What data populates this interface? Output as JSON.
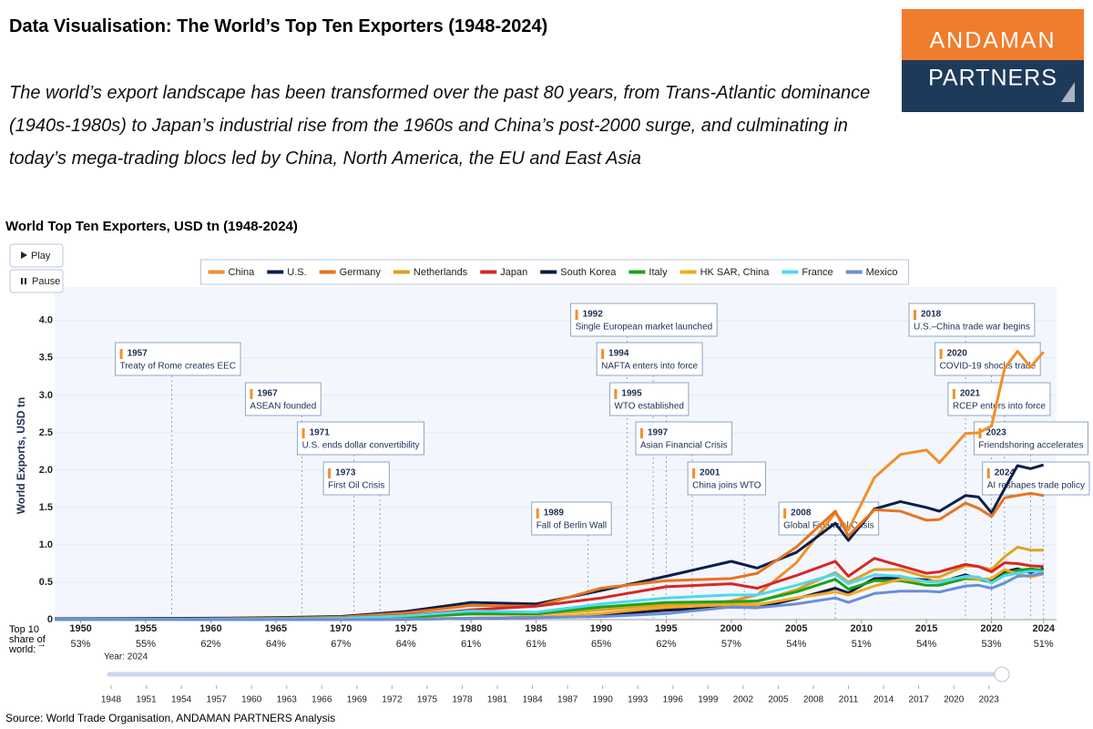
{
  "header": {
    "title": "Data Visualisation: The World’s Top Ten Exporters (1948-2024)",
    "subtitle": "The world’s export landscape has been transformed over the past 80 years, from Trans-Atlantic dominance (1940s-1980s) to Japan’s industrial rise from the 1960s and China’s post-2000 surge, and culminating in today’s mega-trading blocs led by China, North America, the EU and East Asia",
    "logo_top": "ANDAMAN",
    "logo_bottom": "PARTNERS"
  },
  "controls": {
    "play": "Play",
    "pause": "Pause",
    "slider_label": "Year: 2024",
    "slider_ticks": [
      1948,
      1951,
      1954,
      1957,
      1960,
      1963,
      1966,
      1969,
      1972,
      1975,
      1978,
      1981,
      1984,
      1987,
      1990,
      1993,
      1996,
      1999,
      2002,
      2005,
      2008,
      2011,
      2014,
      2017,
      2020,
      2023
    ]
  },
  "source": "Source: World Trade Organisation, ANDAMAN PARTNERS Analysis",
  "chart_data": {
    "type": "line",
    "title": "World Top Ten Exporters, USD tn (1948-2024)",
    "y_label": "World Exports, USD tn",
    "share_title": "Top 10 share of world:",
    "share_labels": [
      "53%",
      "55%",
      "62%",
      "64%",
      "67%",
      "64%",
      "61%",
      "61%",
      "65%",
      "62%",
      "57%",
      "54%",
      "51%",
      "54%",
      "53%",
      "51%"
    ],
    "xlim": [
      1948,
      2025
    ],
    "xticks": [
      1950,
      1955,
      1960,
      1965,
      1970,
      1975,
      1980,
      1985,
      1990,
      1995,
      2000,
      2005,
      2010,
      2015,
      2020,
      2024
    ],
    "ylim": [
      0,
      4.4
    ],
    "yticks": [
      0,
      0.5,
      {
        "value": 1,
        "label": "1.0"
      },
      1.5,
      {
        "value": 2,
        "label": "2.0"
      },
      2.5,
      {
        "value": 3,
        "label": "3.0"
      },
      3.5,
      {
        "value": 4,
        "label": "4.0"
      }
    ],
    "x": [
      1948,
      1955,
      1960,
      1965,
      1970,
      1975,
      1980,
      1985,
      1990,
      1995,
      2000,
      2002,
      2005,
      2008,
      2009,
      2011,
      2013,
      2015,
      2016,
      2018,
      2019,
      2020,
      2021,
      2022,
      2023,
      2024
    ],
    "series": [
      {
        "name": "China",
        "color": "#f28e2b",
        "values": [
          0,
          0,
          0,
          0,
          0,
          0.01,
          0.02,
          0.03,
          0.06,
          0.15,
          0.25,
          0.33,
          0.76,
          1.43,
          1.2,
          1.9,
          2.21,
          2.27,
          2.1,
          2.49,
          2.5,
          2.59,
          3.36,
          3.59,
          3.38,
          3.58
        ]
      },
      {
        "name": "U.S.",
        "color": "#0b1f4d",
        "values": [
          0.012,
          0.015,
          0.02,
          0.027,
          0.043,
          0.11,
          0.23,
          0.21,
          0.39,
          0.58,
          0.78,
          0.69,
          0.9,
          1.29,
          1.06,
          1.48,
          1.58,
          1.5,
          1.45,
          1.66,
          1.64,
          1.43,
          1.75,
          2.06,
          2.02,
          2.07
        ]
      },
      {
        "name": "Germany",
        "color": "#e8731f",
        "values": [
          0.002,
          0.006,
          0.011,
          0.018,
          0.034,
          0.09,
          0.19,
          0.18,
          0.42,
          0.52,
          0.55,
          0.62,
          0.97,
          1.45,
          1.12,
          1.47,
          1.45,
          1.33,
          1.34,
          1.56,
          1.49,
          1.38,
          1.63,
          1.66,
          1.69,
          1.66
        ]
      },
      {
        "name": "Netherlands",
        "color": "#e0a020",
        "values": [
          0.001,
          0.003,
          0.004,
          0.006,
          0.012,
          0.035,
          0.074,
          0.068,
          0.13,
          0.2,
          0.23,
          0.24,
          0.4,
          0.63,
          0.5,
          0.67,
          0.67,
          0.57,
          0.57,
          0.72,
          0.71,
          0.67,
          0.84,
          0.97,
          0.93,
          0.93
        ]
      },
      {
        "name": "Japan",
        "color": "#d62728",
        "values": [
          0.0003,
          0.002,
          0.004,
          0.008,
          0.019,
          0.056,
          0.13,
          0.18,
          0.29,
          0.44,
          0.48,
          0.42,
          0.59,
          0.78,
          0.58,
          0.82,
          0.72,
          0.62,
          0.64,
          0.74,
          0.71,
          0.64,
          0.76,
          0.75,
          0.72,
          0.71
        ]
      },
      {
        "name": "South Korea",
        "color": "#081a45",
        "values": [
          0,
          0,
          0,
          0,
          0.001,
          0.005,
          0.017,
          0.03,
          0.065,
          0.125,
          0.17,
          0.16,
          0.28,
          0.42,
          0.36,
          0.55,
          0.56,
          0.53,
          0.5,
          0.6,
          0.54,
          0.51,
          0.64,
          0.68,
          0.63,
          0.68
        ]
      },
      {
        "name": "Italy",
        "color": "#1aa31a",
        "values": [
          0.001,
          0.002,
          0.004,
          0.007,
          0.013,
          0.035,
          0.078,
          0.079,
          0.17,
          0.23,
          0.24,
          0.25,
          0.37,
          0.54,
          0.41,
          0.52,
          0.52,
          0.46,
          0.46,
          0.55,
          0.54,
          0.5,
          0.61,
          0.66,
          0.68,
          0.66
        ]
      },
      {
        "name": "HK SAR, China",
        "color": "#f5a623",
        "values": [
          0.0003,
          0.0005,
          0.0007,
          0.0012,
          0.0025,
          0.006,
          0.02,
          0.03,
          0.082,
          0.17,
          0.2,
          0.2,
          0.29,
          0.37,
          0.33,
          0.45,
          0.54,
          0.51,
          0.52,
          0.57,
          0.54,
          0.55,
          0.67,
          0.61,
          0.57,
          0.61
        ]
      },
      {
        "name": "France",
        "color": "#4dd8f0",
        "values": [
          0.002,
          0.005,
          0.007,
          0.01,
          0.018,
          0.053,
          0.116,
          0.1,
          0.21,
          0.29,
          0.33,
          0.33,
          0.46,
          0.61,
          0.48,
          0.6,
          0.58,
          0.51,
          0.5,
          0.58,
          0.57,
          0.49,
          0.59,
          0.62,
          0.65,
          0.64
        ]
      },
      {
        "name": "Mexico",
        "color": "#6b8fd6",
        "values": [
          0.0005,
          0.001,
          0.001,
          0.001,
          0.001,
          0.003,
          0.018,
          0.027,
          0.041,
          0.08,
          0.17,
          0.16,
          0.21,
          0.29,
          0.23,
          0.35,
          0.38,
          0.38,
          0.37,
          0.45,
          0.46,
          0.42,
          0.49,
          0.58,
          0.59,
          0.62
        ]
      }
    ],
    "annotations": [
      {
        "year": 1957,
        "text": "Treaty of Rome creates EEC"
      },
      {
        "year": 1967,
        "text": "ASEAN founded"
      },
      {
        "year": 1971,
        "text": "U.S. ends dollar convertibility"
      },
      {
        "year": 1973,
        "text": "First Oil Crisis"
      },
      {
        "year": 1989,
        "text": "Fall of Berlin Wall"
      },
      {
        "year": 1992,
        "text": "Single European market launched"
      },
      {
        "year": 1994,
        "text": "NAFTA enters into force"
      },
      {
        "year": 1995,
        "text": "WTO established"
      },
      {
        "year": 1997,
        "text": "Asian Financial Crisis"
      },
      {
        "year": 2001,
        "text": "China joins WTO"
      },
      {
        "year": 2008,
        "text": "Global Financial Crisis"
      },
      {
        "year": 2018,
        "text": "U.S.–China trade war begins"
      },
      {
        "year": 2020,
        "text": "COVID-19 shocks trade"
      },
      {
        "year": 2021,
        "text": "RCEP enters into force"
      },
      {
        "year": 2023,
        "text": "Friendshoring accelerates"
      },
      {
        "year": 2024,
        "text": "AI reshapes trade policy"
      }
    ]
  }
}
